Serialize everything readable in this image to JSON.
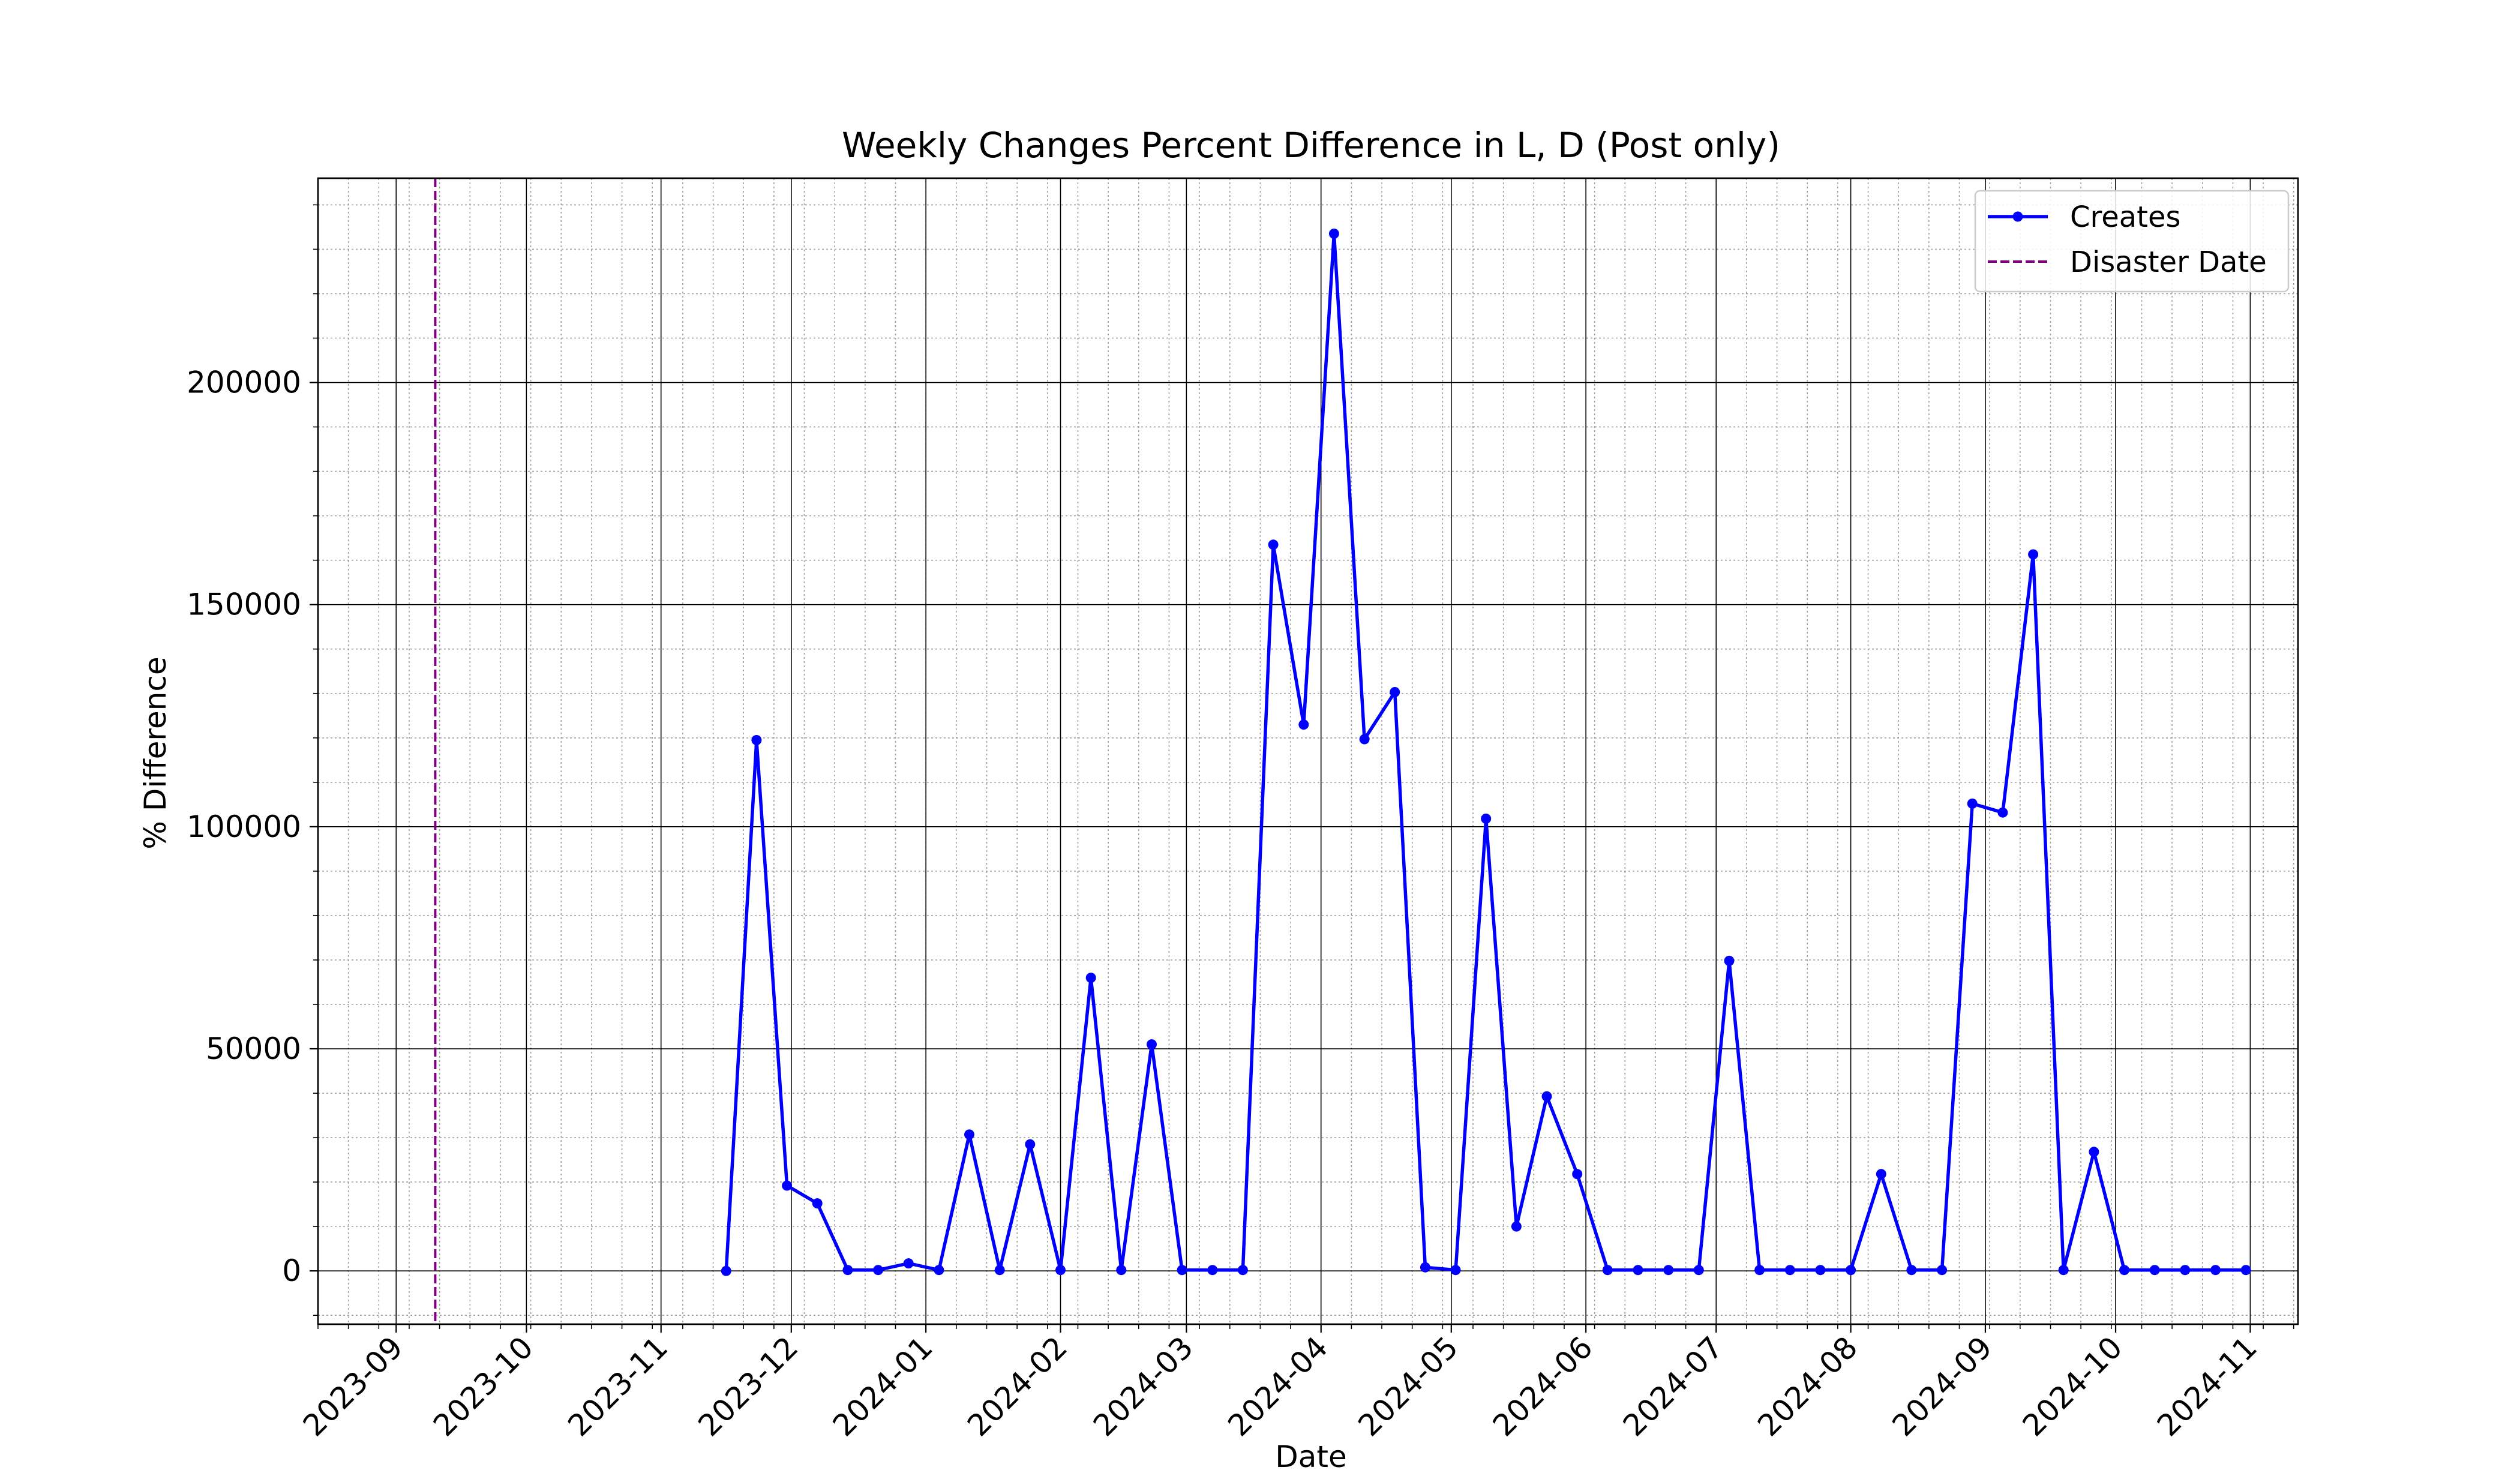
{
  "chart_data": {
    "type": "line",
    "title": "Weekly Changes Percent Difference in L, D (Post only)",
    "xlabel": "Date",
    "ylabel": "% Difference",
    "grid": true,
    "legend_position": "top-right",
    "xlim": [
      "2023-08-14",
      "2024-11-12"
    ],
    "ylim": [
      -12000,
      246000
    ],
    "x_ticks": [
      "2023-09-01",
      "2023-10-01",
      "2023-11-01",
      "2023-12-01",
      "2024-01-01",
      "2024-02-01",
      "2024-03-01",
      "2024-04-01",
      "2024-05-01",
      "2024-06-01",
      "2024-07-01",
      "2024-08-01",
      "2024-09-01",
      "2024-10-01",
      "2024-11-01"
    ],
    "x_tick_labels": [
      "2023-09",
      "2023-10",
      "2023-11",
      "2023-12",
      "2024-01",
      "2024-02",
      "2024-03",
      "2024-04",
      "2024-05",
      "2024-06",
      "2024-07",
      "2024-08",
      "2024-09",
      "2024-10",
      "2024-11"
    ],
    "y_ticks": [
      0,
      50000,
      100000,
      150000,
      200000
    ],
    "y_tick_labels": [
      "0",
      "50000",
      "100000",
      "150000",
      "200000"
    ],
    "series": [
      {
        "name": "Creates",
        "color": "#0000ff",
        "marker": "circle",
        "x": [
          "2023-11-16",
          "2023-11-23",
          "2023-11-30",
          "2023-12-07",
          "2023-12-14",
          "2023-12-21",
          "2023-12-28",
          "2024-01-04",
          "2024-01-11",
          "2024-01-18",
          "2024-01-25",
          "2024-02-01",
          "2024-02-08",
          "2024-02-15",
          "2024-02-22",
          "2024-02-29",
          "2024-03-07",
          "2024-03-14",
          "2024-03-21",
          "2024-03-28",
          "2024-04-04",
          "2024-04-11",
          "2024-04-18",
          "2024-04-25",
          "2024-05-02",
          "2024-05-09",
          "2024-05-16",
          "2024-05-23",
          "2024-05-30",
          "2024-06-06",
          "2024-06-13",
          "2024-06-20",
          "2024-06-27",
          "2024-07-04",
          "2024-07-11",
          "2024-07-18",
          "2024-07-25",
          "2024-08-01",
          "2024-08-08",
          "2024-08-15",
          "2024-08-22",
          "2024-08-29",
          "2024-09-05",
          "2024-09-12",
          "2024-09-19",
          "2024-09-26",
          "2024-10-03",
          "2024-10-10",
          "2024-10-17",
          "2024-10-24",
          "2024-10-31"
        ],
        "values": [
          0,
          119500,
          19200,
          15200,
          200,
          200,
          1700,
          200,
          30700,
          200,
          28500,
          200,
          66000,
          200,
          51000,
          200,
          200,
          200,
          163500,
          123000,
          233500,
          119700,
          130300,
          800,
          200,
          101800,
          10000,
          39300,
          21800,
          200,
          200,
          200,
          200,
          69800,
          200,
          200,
          200,
          200,
          21800,
          200,
          200,
          105200,
          103200,
          161300,
          200,
          26800,
          200,
          200,
          200,
          200,
          200
        ]
      }
    ],
    "vlines": [
      {
        "name": "Disaster Date",
        "x": "2023-09-10",
        "color": "#800080",
        "style": "dashed"
      }
    ]
  }
}
